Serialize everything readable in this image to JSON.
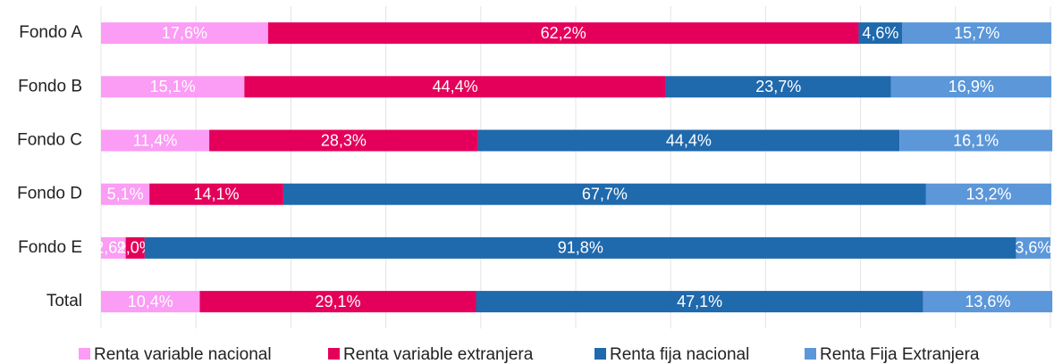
{
  "chart_data": {
    "type": "stacked-bar-horizontal",
    "categories": [
      "Fondo A",
      "Fondo B",
      "Fondo C",
      "Fondo D",
      "Fondo E",
      "Total"
    ],
    "series": [
      {
        "name": "Renta variable nacional",
        "color": "#fb9cf5",
        "values": [
          17.6,
          15.1,
          11.4,
          5.1,
          2.6,
          10.4
        ],
        "value_labels": [
          "17,6%",
          "15,1%",
          "11,4%",
          "5,1%",
          "2,6%",
          "10,4%"
        ]
      },
      {
        "name": "Renta variable extranjera",
        "color": "#e4005a",
        "values": [
          62.2,
          44.4,
          28.3,
          14.1,
          2.0,
          29.1
        ],
        "value_labels": [
          "62,2%",
          "44,4%",
          "28,3%",
          "14,1%",
          "2,0%",
          "29,1%"
        ]
      },
      {
        "name": "Renta fija nacional",
        "color": "#1f69ad",
        "values": [
          4.6,
          23.7,
          44.4,
          67.7,
          91.8,
          47.1
        ],
        "value_labels": [
          "4,6%",
          "23,7%",
          "44,4%",
          "67,7%",
          "91,8%",
          "47,1%"
        ]
      },
      {
        "name": "Renta Fija Extranjera",
        "color": "#5b97d9",
        "values": [
          15.7,
          16.9,
          16.1,
          13.2,
          3.6,
          13.6
        ],
        "value_labels": [
          "15,7%",
          "16,9%",
          "16,1%",
          "13,2%",
          "3,6%",
          "13,6%"
        ]
      }
    ],
    "xlim": [
      0,
      100
    ],
    "xticks": [
      0,
      10,
      20,
      30,
      40,
      50,
      60,
      70,
      80,
      90,
      100
    ],
    "grid": true,
    "legend": "bottom"
  }
}
